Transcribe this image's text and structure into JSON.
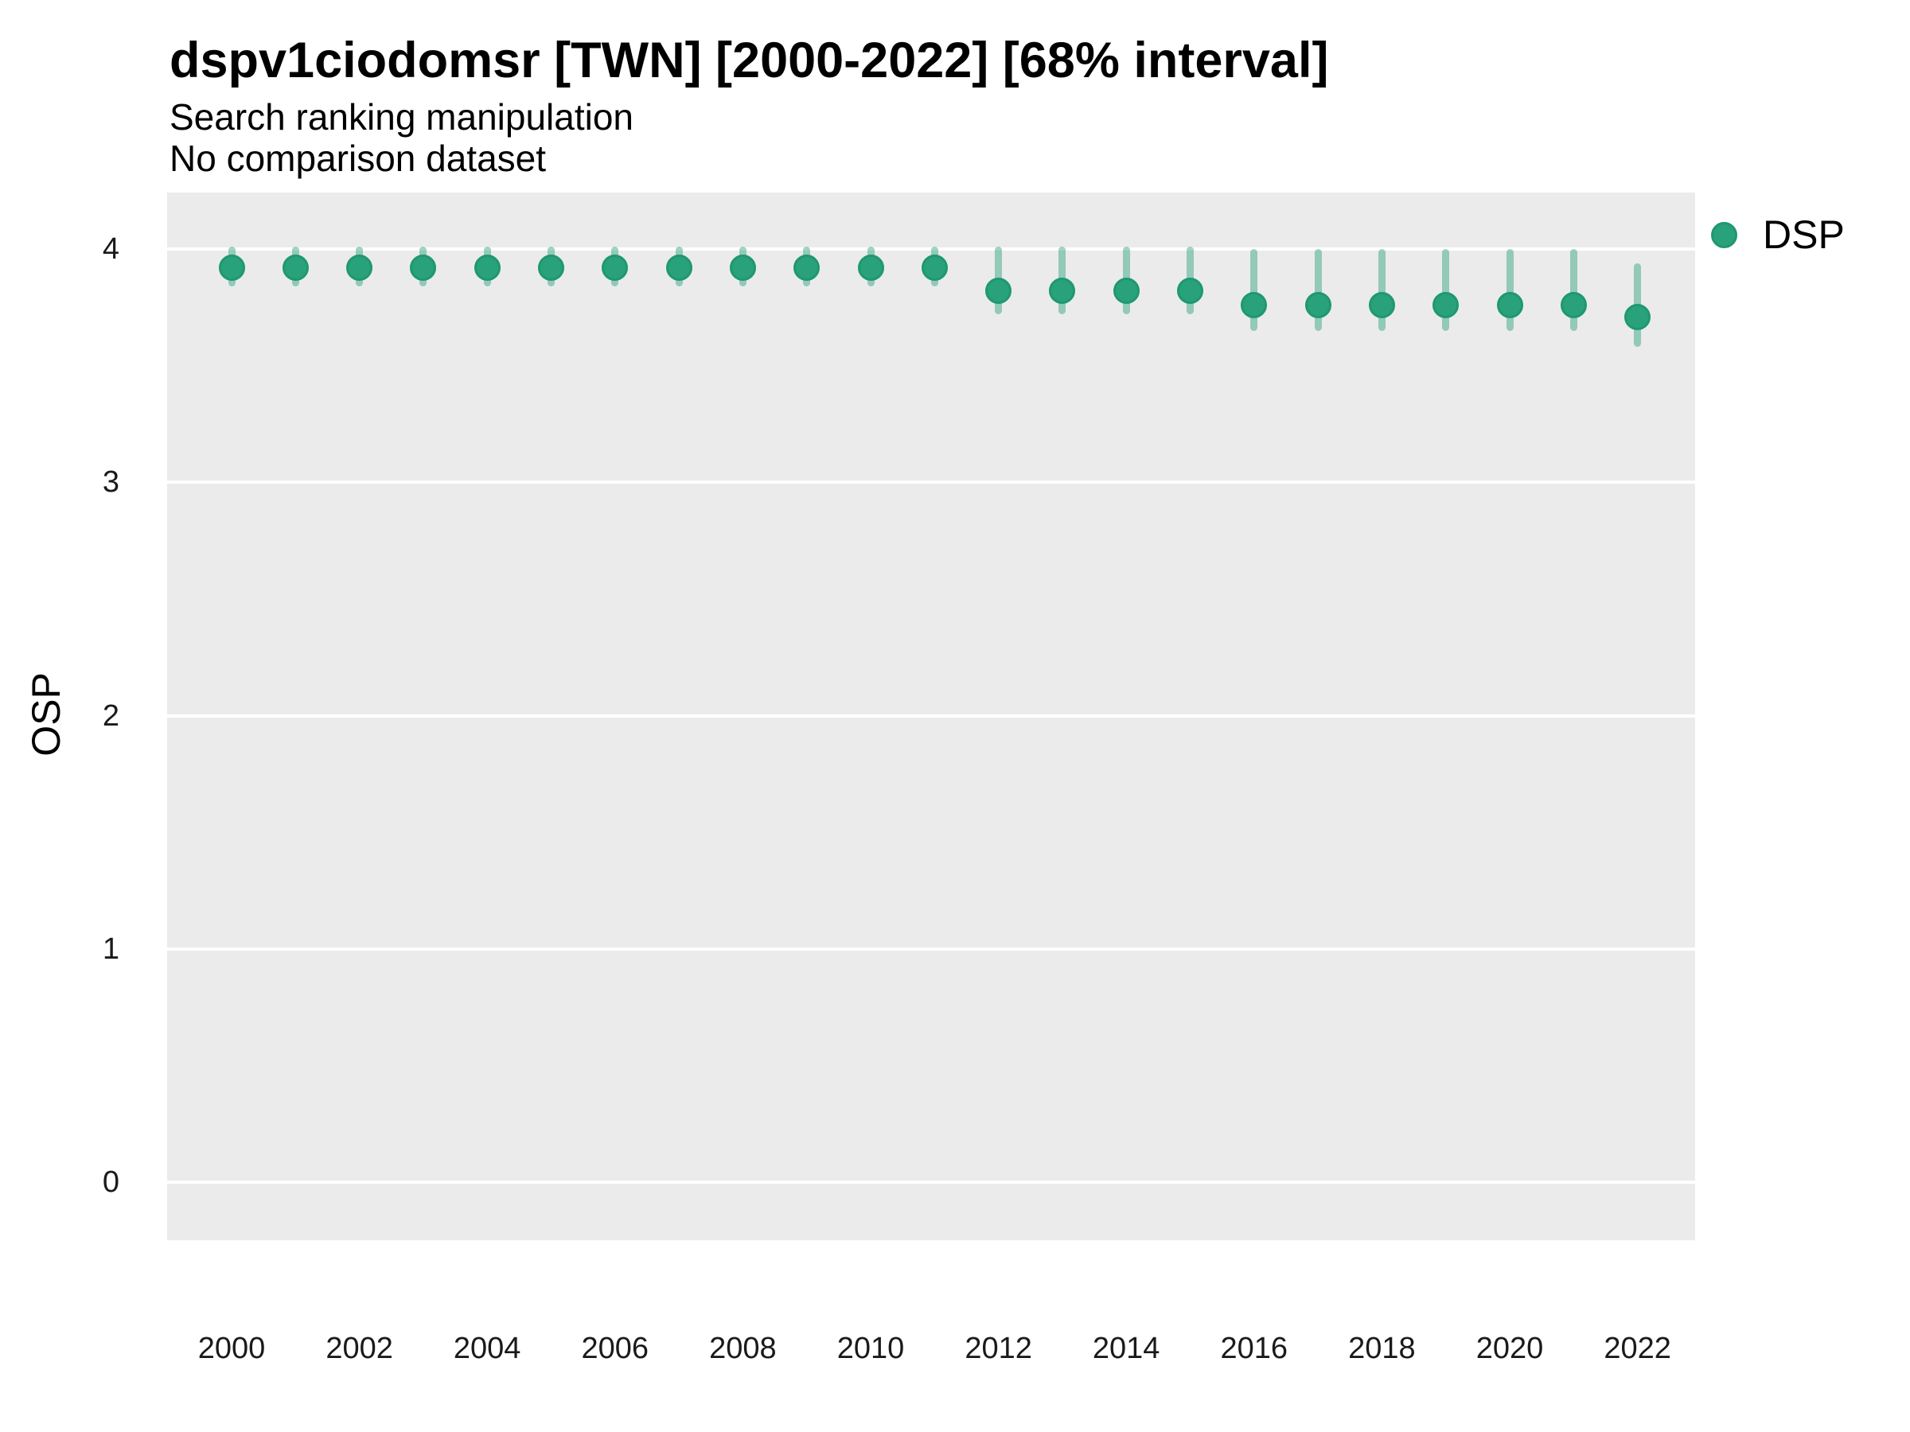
{
  "header": {
    "title": "dspv1ciodomsr [TWN] [2000-2022] [68% interval]",
    "subtitle1": "Search ranking manipulation",
    "subtitle2": "No comparison dataset"
  },
  "axes": {
    "y_title": "OSP",
    "y_ticks": [
      0,
      1,
      2,
      3,
      4
    ],
    "x_ticks": [
      2000,
      2002,
      2004,
      2006,
      2008,
      2010,
      2012,
      2014,
      2016,
      2018,
      2020,
      2022
    ]
  },
  "legend": {
    "items": [
      {
        "label": "DSP",
        "color": "#29A27B"
      }
    ]
  },
  "colors": {
    "panel_background": "#EBEBEB",
    "gridline": "#FFFFFF",
    "point_fill": "#29A27B",
    "point_stroke": "#1E9870",
    "interval_bar": "rgba(41,162,123,0.46)",
    "text": "#000000",
    "tick_text": "#1A1A1A"
  },
  "chart_data": {
    "type": "scatter",
    "subtype": "pointrange",
    "title": "dspv1ciodomsr [TWN] [2000-2022] [68% interval]",
    "subtitle": [
      "Search ranking manipulation",
      "No comparison dataset"
    ],
    "interval": "68%",
    "xlabel": "",
    "ylabel": "OSP",
    "xlim": [
      1999,
      2023.2
    ],
    "ylim": [
      -0.25,
      4.25
    ],
    "grid": "horizontal-major-only",
    "legend_position": "right-top",
    "series": [
      {
        "name": "DSP",
        "x": [
          2000,
          2001,
          2002,
          2003,
          2004,
          2005,
          2006,
          2007,
          2008,
          2009,
          2010,
          2011,
          2012,
          2013,
          2014,
          2015,
          2016,
          2017,
          2018,
          2019,
          2020,
          2021,
          2022
        ],
        "y": [
          3.92,
          3.92,
          3.92,
          3.92,
          3.92,
          3.92,
          3.92,
          3.92,
          3.92,
          3.92,
          3.92,
          3.92,
          3.82,
          3.82,
          3.82,
          3.82,
          3.76,
          3.76,
          3.76,
          3.76,
          3.76,
          3.76,
          3.71
        ],
        "y_low": [
          3.84,
          3.84,
          3.84,
          3.84,
          3.84,
          3.84,
          3.84,
          3.84,
          3.84,
          3.84,
          3.84,
          3.84,
          3.72,
          3.72,
          3.72,
          3.72,
          3.65,
          3.65,
          3.65,
          3.65,
          3.65,
          3.65,
          3.58
        ],
        "y_high": [
          4.01,
          4.01,
          4.01,
          4.01,
          4.01,
          4.01,
          4.01,
          4.01,
          4.01,
          4.01,
          4.01,
          4.01,
          4.01,
          4.01,
          4.01,
          4.01,
          4.0,
          4.0,
          4.0,
          4.0,
          4.0,
          4.0,
          3.94
        ]
      }
    ]
  }
}
